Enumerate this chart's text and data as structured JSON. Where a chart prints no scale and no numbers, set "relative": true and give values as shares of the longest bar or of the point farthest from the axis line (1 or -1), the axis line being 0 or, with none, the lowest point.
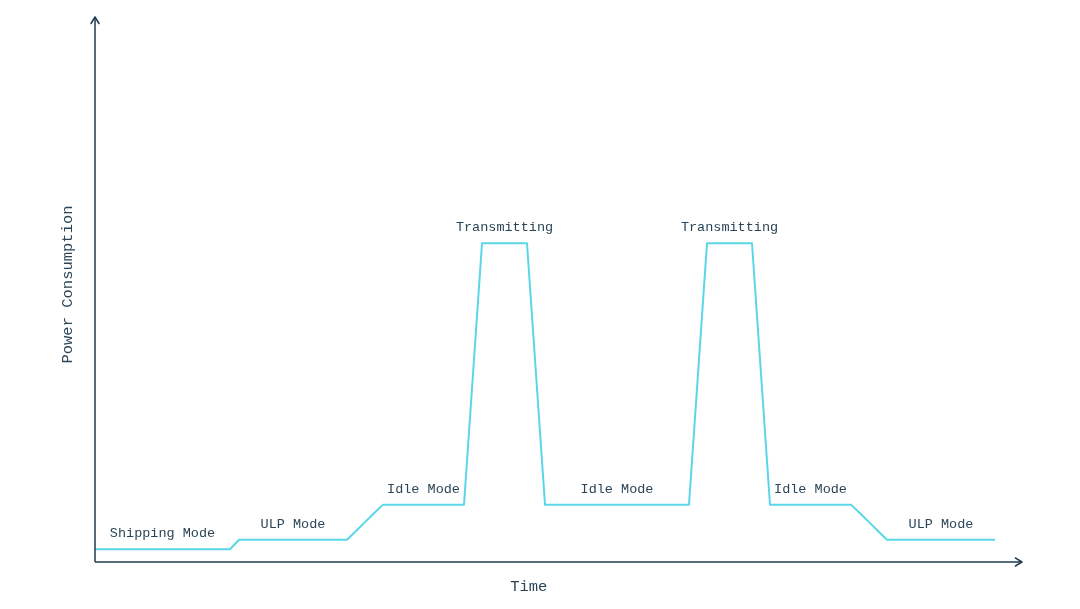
{
  "chart_data": {
    "type": "line",
    "xlabel": "Time",
    "ylabel": "Power Consumption",
    "relative": true,
    "color": "#5bd6e8",
    "categories": [
      null,
      null,
      null,
      null,
      null,
      null,
      null,
      null,
      null,
      null,
      null,
      null,
      null,
      null,
      null,
      null,
      null,
      null,
      null,
      null,
      null,
      null,
      null,
      null,
      null,
      null,
      null,
      null,
      null,
      null,
      null,
      null,
      null,
      null,
      null,
      null,
      null,
      null,
      null,
      null,
      null,
      null,
      null,
      null,
      null,
      null,
      null,
      null,
      null,
      null,
      null,
      null,
      null,
      null,
      null,
      null,
      null,
      null,
      null,
      null,
      null,
      null,
      null,
      null,
      null,
      null,
      null,
      null,
      null,
      null,
      null,
      null,
      null,
      null,
      null,
      null,
      null,
      null,
      null,
      null,
      null,
      null,
      null,
      null,
      null,
      null,
      null,
      null,
      null,
      null,
      null,
      null,
      null,
      null,
      null,
      null,
      null,
      null,
      null,
      null,
      null
    ],
    "values": [
      0.04,
      0.04,
      0.04,
      0.04,
      0.04,
      0.04,
      0.04,
      0.04,
      0.04,
      0.04,
      0.04,
      0.04,
      0.04,
      0.04,
      0.04,
      0.04,
      0.07,
      0.07,
      0.07,
      0.07,
      0.07,
      0.07,
      0.07,
      0.07,
      0.07,
      0.07,
      0.07,
      0.07,
      0.07,
      0.097,
      0.125,
      0.153,
      0.18,
      0.18,
      0.18,
      0.18,
      0.18,
      0.18,
      0.18,
      0.18,
      0.18,
      0.18,
      0.59,
      1,
      1,
      1,
      1,
      1,
      1,
      0.59,
      0.18,
      0.18,
      0.18,
      0.18,
      0.18,
      0.18,
      0.18,
      0.18,
      0.18,
      0.18,
      0.18,
      0.18,
      0.18,
      0.18,
      0.18,
      0.18,
      0.18,
      0.59,
      1,
      1,
      1,
      1,
      1,
      1,
      0.59,
      0.18,
      0.18,
      0.18,
      0.18,
      0.18,
      0.18,
      0.18,
      0.18,
      0.18,
      0.18,
      0.153,
      0.125,
      0.097,
      0.07,
      0.07,
      0.07,
      0.07,
      0.07,
      0.07,
      0.07,
      0.07,
      0.07,
      0.07,
      0.07,
      0.07,
      0.07
    ],
    "annotations": [
      {
        "text": "Shipping Mode",
        "y": 0.04
      },
      {
        "text": "ULP Mode",
        "y": 0.07
      },
      {
        "text": "Idle Mode",
        "y": 0.18
      },
      {
        "text": "Transmitting",
        "y": 1
      },
      {
        "text": "Idle Mode",
        "y": 0.18
      },
      {
        "text": "Transmitting",
        "y": 1
      },
      {
        "text": "Idle Mode",
        "y": 0.18
      },
      {
        "text": "ULP Mode",
        "y": 0.07
      }
    ]
  }
}
